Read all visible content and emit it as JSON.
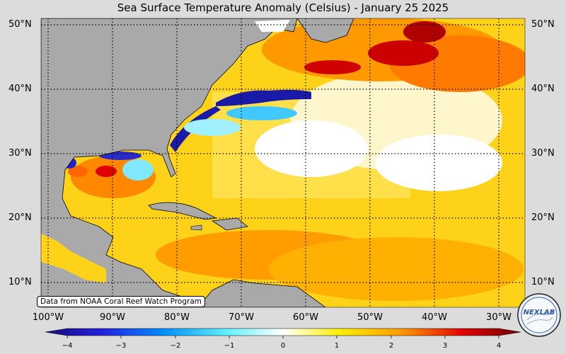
{
  "title": "Sea Surface Temperature Anomaly (Celsius) - January 25 2025",
  "credit": "Data from NOAA Coral Reef Watch Program",
  "logo_text": "NEXLAB",
  "map": {
    "lon_range": [
      -100,
      -26
    ],
    "lat_range": [
      6,
      51
    ],
    "lat_labels": [
      "50°N",
      "40°N",
      "30°N",
      "20°N",
      "10°N"
    ],
    "lon_labels": [
      "100°W",
      "90°W",
      "80°W",
      "70°W",
      "60°W",
      "50°W",
      "40°W",
      "30°W"
    ],
    "land_color": "#a9a9a9",
    "grid": true
  },
  "colorbar": {
    "min": -4,
    "max": 4,
    "ticks": [
      "−4",
      "−3",
      "−2",
      "−1",
      "0",
      "1",
      "2",
      "3",
      "4"
    ],
    "colors": [
      "#1b0a7a",
      "#0040ff",
      "#00c8ff",
      "#ffffff",
      "#ffff00",
      "#ff9900",
      "#e00000",
      "#6e0000"
    ]
  }
}
